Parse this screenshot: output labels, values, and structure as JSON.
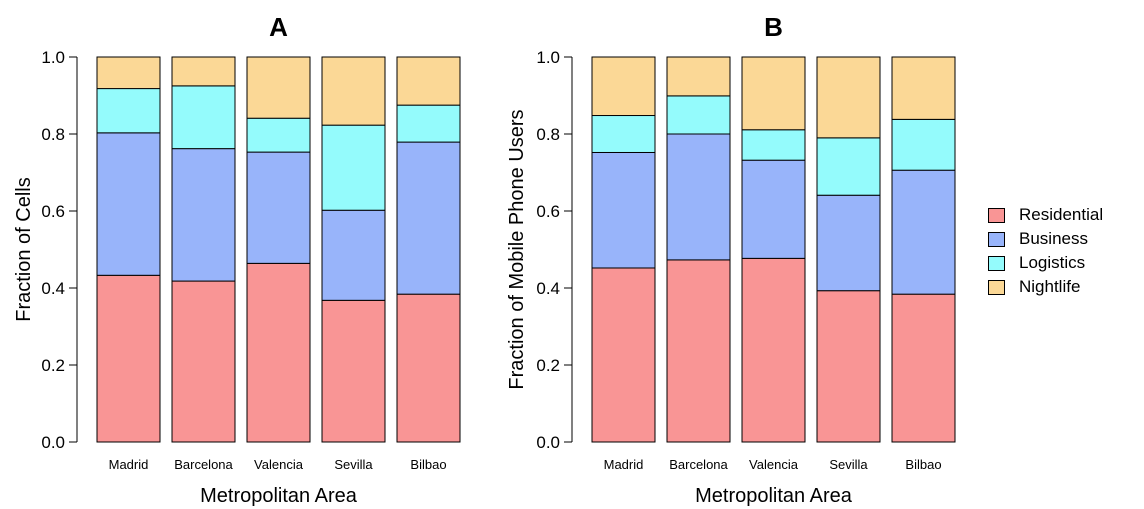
{
  "chart_data": [
    {
      "panel": "A",
      "type": "bar",
      "stacked": true,
      "title": "A",
      "xlabel": "Metropolitan Area",
      "ylabel": "Fraction of Cells",
      "ylim": [
        0,
        1
      ],
      "yticks": [
        "0.0",
        "0.2",
        "0.4",
        "0.6",
        "0.8",
        "1.0"
      ],
      "categories": [
        "Madrid",
        "Barcelona",
        "Valencia",
        "Sevilla",
        "Bilbao"
      ],
      "series": [
        {
          "name": "Residential",
          "values": [
            0.433,
            0.418,
            0.464,
            0.368,
            0.384
          ]
        },
        {
          "name": "Business",
          "values": [
            0.37,
            0.344,
            0.289,
            0.234,
            0.395
          ]
        },
        {
          "name": "Logistics",
          "values": [
            0.115,
            0.163,
            0.088,
            0.221,
            0.096
          ]
        },
        {
          "name": "Nightlife",
          "values": [
            0.082,
            0.075,
            0.159,
            0.177,
            0.125
          ]
        }
      ]
    },
    {
      "panel": "B",
      "type": "bar",
      "stacked": true,
      "title": "B",
      "xlabel": "Metropolitan Area",
      "ylabel": "Fraction of Mobile Phone Users",
      "ylim": [
        0,
        1
      ],
      "yticks": [
        "0.0",
        "0.2",
        "0.4",
        "0.6",
        "0.8",
        "1.0"
      ],
      "categories": [
        "Madrid",
        "Barcelona",
        "Valencia",
        "Sevilla",
        "Bilbao"
      ],
      "series": [
        {
          "name": "Residential",
          "values": [
            0.452,
            0.473,
            0.477,
            0.393,
            0.384
          ]
        },
        {
          "name": "Business",
          "values": [
            0.3,
            0.327,
            0.255,
            0.248,
            0.322
          ]
        },
        {
          "name": "Logistics",
          "values": [
            0.096,
            0.099,
            0.079,
            0.149,
            0.132
          ]
        },
        {
          "name": "Nightlife",
          "values": [
            0.152,
            0.101,
            0.189,
            0.21,
            0.162
          ]
        }
      ]
    }
  ],
  "legend": {
    "position": "right",
    "items": [
      {
        "label": "Residential",
        "color": "#F99595"
      },
      {
        "label": "Business",
        "color": "#98B4FA"
      },
      {
        "label": "Logistics",
        "color": "#94FBFC"
      },
      {
        "label": "Nightlife",
        "color": "#FBD896"
      }
    ]
  },
  "colors": {
    "Residential": "#F99595",
    "Business": "#98B4FA",
    "Logistics": "#94FBFC",
    "Nightlife": "#FBD896"
  }
}
